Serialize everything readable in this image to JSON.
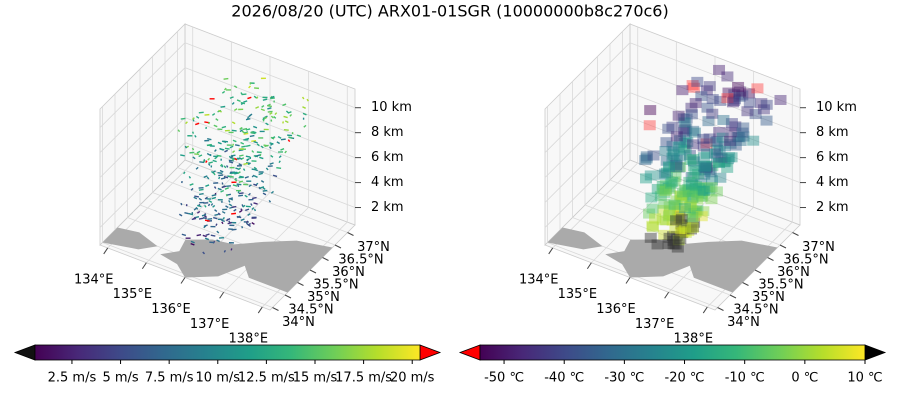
{
  "title": "2026/08/20 (UTC) ARX01-01SGR (10000000b8c270c6)",
  "chart_data": [
    {
      "type": "3d-wind",
      "cmap": "viridis",
      "xlim": [
        133.8,
        138.2
      ],
      "ylim": [
        33.9,
        37.3
      ],
      "zlim": [
        0.6,
        11.5
      ],
      "xticks": [
        {
          "value": 134,
          "label": "134°E"
        },
        {
          "value": 135,
          "label": "135°E"
        },
        {
          "value": 136,
          "label": "136°E"
        },
        {
          "value": 137,
          "label": "137°E"
        },
        {
          "value": 138,
          "label": "138°E"
        }
      ],
      "yticks": [
        {
          "value": 34,
          "label": "34°N"
        },
        {
          "value": 34.5,
          "label": "34.5°N"
        },
        {
          "value": 35,
          "label": "35°N"
        },
        {
          "value": 35.5,
          "label": "35.5°N"
        },
        {
          "value": 36,
          "label": "36°N"
        },
        {
          "value": 36.5,
          "label": "36.5°N"
        },
        {
          "value": 37,
          "label": "37°N"
        }
      ],
      "zticks": [
        {
          "value": 2,
          "label": "2 km"
        },
        {
          "value": 4,
          "label": "4 km"
        },
        {
          "value": 6,
          "label": "6 km"
        },
        {
          "value": 8,
          "label": "8 km"
        },
        {
          "value": 10,
          "label": "10 km"
        }
      ],
      "colorbar": {
        "lim": [
          0.6,
          20.4
        ],
        "under_color": "#111111",
        "over_color": "#ff0000",
        "ticks": [
          {
            "value": 2.5,
            "label": "2.5 m/s"
          },
          {
            "value": 5,
            "label": "5 m/s"
          },
          {
            "value": 7.5,
            "label": "7.5 m/s"
          },
          {
            "value": 10,
            "label": "10 m/s"
          },
          {
            "value": 12.5,
            "label": "12.5 m/s"
          },
          {
            "value": 15,
            "label": "15 m/s"
          },
          {
            "value": 17.5,
            "label": "17.5 m/s"
          },
          {
            "value": 20,
            "label": "20 m/s"
          }
        ]
      }
    },
    {
      "type": "3d-voxel",
      "cmap": "viridis",
      "xlim": [
        133.8,
        138.2
      ],
      "ylim": [
        33.9,
        37.3
      ],
      "zlim": [
        0.6,
        11.5
      ],
      "xticks": [
        {
          "value": 134,
          "label": "134°E"
        },
        {
          "value": 135,
          "label": "135°E"
        },
        {
          "value": 136,
          "label": "136°E"
        },
        {
          "value": 137,
          "label": "137°E"
        },
        {
          "value": 138,
          "label": "138°E"
        }
      ],
      "yticks": [
        {
          "value": 34,
          "label": "34°N"
        },
        {
          "value": 34.5,
          "label": "34.5°N"
        },
        {
          "value": 35,
          "label": "35°N"
        },
        {
          "value": 35.5,
          "label": "35.5°N"
        },
        {
          "value": 36,
          "label": "36°N"
        },
        {
          "value": 36.5,
          "label": "36.5°N"
        },
        {
          "value": 37,
          "label": "37°N"
        }
      ],
      "zticks": [
        {
          "value": 2,
          "label": "2 km"
        },
        {
          "value": 4,
          "label": "4 km"
        },
        {
          "value": 6,
          "label": "6 km"
        },
        {
          "value": 8,
          "label": "8 km"
        },
        {
          "value": 10,
          "label": "10 km"
        }
      ],
      "colorbar": {
        "lim": [
          -54,
          10
        ],
        "under_color": "#ff0000",
        "over_color": "#000000",
        "ticks": [
          {
            "value": -50,
            "label": "-50 ℃"
          },
          {
            "value": -40,
            "label": "-40 ℃"
          },
          {
            "value": -30,
            "label": "-30 ℃"
          },
          {
            "value": -20,
            "label": "-20 ℃"
          },
          {
            "value": -10,
            "label": "-10 ℃"
          },
          {
            "value": 0,
            "label": "0 ℃"
          },
          {
            "value": 10,
            "label": "10 ℃"
          }
        ]
      }
    }
  ]
}
